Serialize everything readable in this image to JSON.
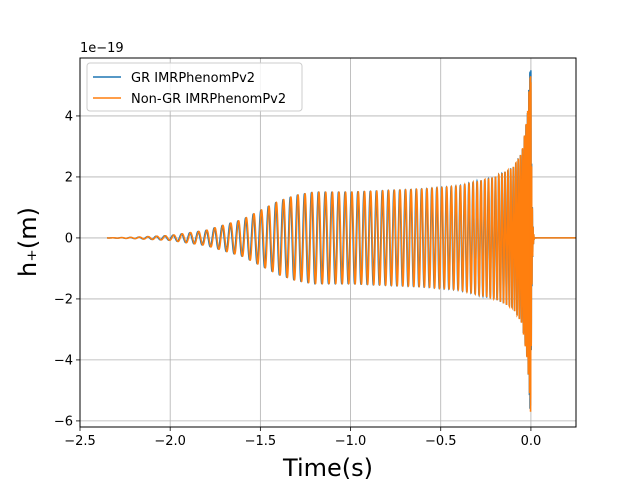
{
  "chart_data": {
    "type": "line",
    "xlabel": "Time(s)",
    "ylabel": "h₊(m)",
    "y_offset_text": "1e−19",
    "xlim": [
      -2.5,
      0.25
    ],
    "ylim": [
      -6.2,
      5.9
    ],
    "x_ticks": [
      -2.5,
      -2.0,
      -1.5,
      -1.0,
      -0.5,
      0.0
    ],
    "x_tick_labels": [
      "−2.5",
      "−2.0",
      "−1.5",
      "−1.0",
      "−0.5",
      "0.0"
    ],
    "y_ticks": [
      -6,
      -4,
      -2,
      0,
      2,
      4
    ],
    "y_tick_labels": [
      "−6",
      "−4",
      "−2",
      "0",
      "2",
      "4"
    ],
    "grid": true,
    "legend_position": "upper-left",
    "series": [
      {
        "name": "GR IMRPhenomPv2",
        "color": "#1f77b4",
        "x": [
          -2.35,
          -2.2,
          -2.0,
          -1.8,
          -1.6,
          -1.4,
          -1.3,
          -1.2,
          -1.1,
          -1.0,
          -0.8,
          -0.6,
          -0.4,
          -0.2,
          -0.1,
          -0.05,
          -0.02,
          -0.005,
          0.0,
          0.02,
          0.25
        ],
        "envelope": [
          0.0,
          0.02,
          0.08,
          0.25,
          0.6,
          1.2,
          1.4,
          1.5,
          1.5,
          1.5,
          1.55,
          1.6,
          1.7,
          2.0,
          2.3,
          2.8,
          4.0,
          5.5,
          5.5,
          0.05,
          0.0
        ],
        "peak_max": 5.4,
        "peak_min": -5.6
      },
      {
        "name": "Non-GR IMRPhenomPv2",
        "color": "#ff7f0e",
        "x": [
          -2.35,
          -2.2,
          -2.0,
          -1.8,
          -1.6,
          -1.4,
          -1.3,
          -1.2,
          -1.1,
          -1.0,
          -0.8,
          -0.6,
          -0.4,
          -0.2,
          -0.1,
          -0.05,
          -0.02,
          -0.005,
          0.0,
          0.02,
          0.25
        ],
        "envelope": [
          0.0,
          0.02,
          0.08,
          0.25,
          0.6,
          1.2,
          1.4,
          1.5,
          1.5,
          1.5,
          1.55,
          1.6,
          1.7,
          2.0,
          2.3,
          2.8,
          4.0,
          5.3,
          5.3,
          0.05,
          0.0
        ],
        "peak_max": 5.3,
        "peak_min": -5.7
      }
    ]
  }
}
